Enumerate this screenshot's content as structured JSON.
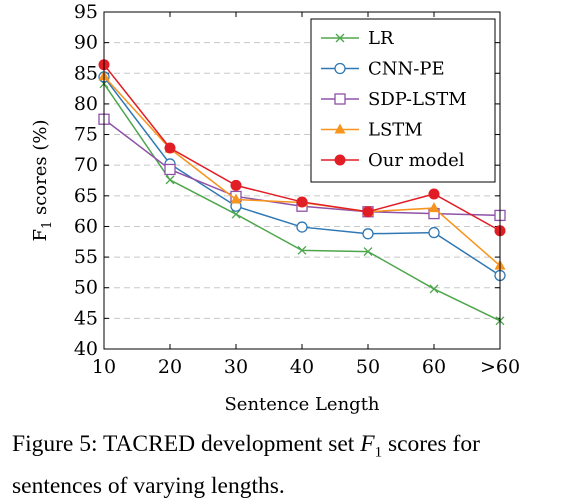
{
  "chart_data": {
    "type": "line",
    "categories": [
      "10",
      "20",
      "30",
      "40",
      "50",
      "60",
      ">60"
    ],
    "xlabel": "Sentence Length",
    "ylabel": "F1 scores (%)",
    "ylim": [
      40,
      95
    ],
    "yticks": [
      40,
      45,
      50,
      55,
      60,
      65,
      70,
      75,
      80,
      85,
      90,
      95
    ],
    "grid": "horizontal dashed",
    "legend_position": "top-right",
    "series": [
      {
        "name": "LR",
        "color": "#4ea64c",
        "marker": "cross",
        "values": [
          83.3,
          67.6,
          62.0,
          56.1,
          55.9,
          49.8,
          44.6
        ]
      },
      {
        "name": "CNN-PE",
        "color": "#2f78b4",
        "marker": "circle-open",
        "values": [
          84.4,
          70.2,
          63.3,
          59.9,
          58.8,
          59.0,
          52.0
        ]
      },
      {
        "name": "SDP-LSTM",
        "color": "#8f52a8",
        "marker": "square-open",
        "values": [
          77.5,
          69.3,
          64.9,
          63.3,
          62.4,
          62.1,
          61.8
        ]
      },
      {
        "name": "LSTM",
        "color": "#f7941d",
        "marker": "triangle",
        "values": [
          84.5,
          72.7,
          64.4,
          63.9,
          62.4,
          63.0,
          53.6
        ]
      },
      {
        "name": "Our model",
        "color": "#e11d25",
        "marker": "circle-filled",
        "values": [
          86.4,
          72.8,
          66.7,
          64.0,
          62.4,
          65.3,
          59.3
        ]
      }
    ]
  },
  "caption": {
    "label": "Figure 5:",
    "text_before": " TACRED development set ",
    "math_f": "F",
    "math_sub": "1",
    "text_after": " scores for sentences of varying lengths."
  }
}
